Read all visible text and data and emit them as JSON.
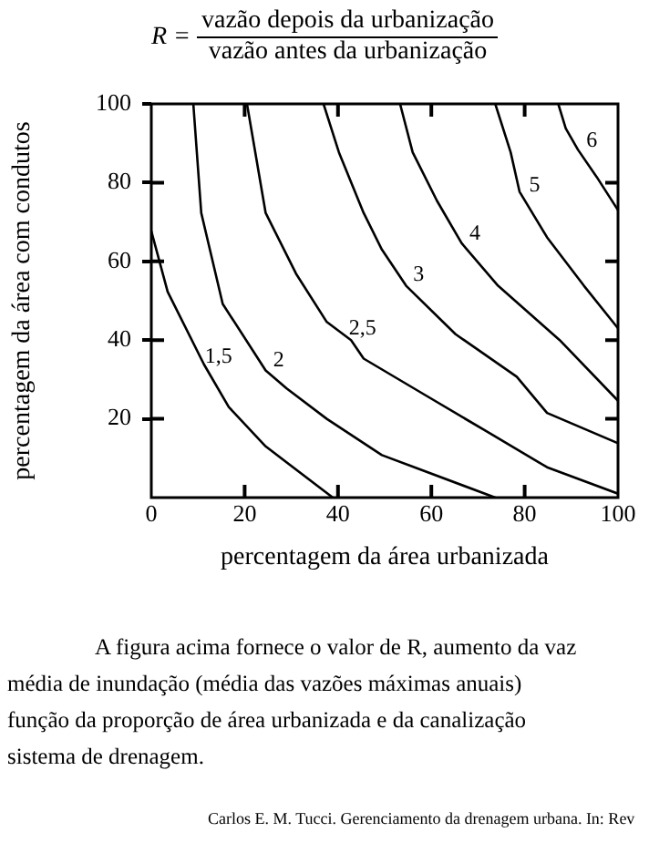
{
  "chart_data": {
    "type": "line",
    "title": "R = vazão depois da urbanização",
    "subtitle": "vazão antes da urbanização",
    "xlabel": "percentagem da área urbanizada",
    "ylabel": "percentagem da área com condutos",
    "xlim": [
      0,
      100
    ],
    "xticks": [
      0,
      20,
      40,
      60,
      80,
      100
    ],
    "ylim": [
      0,
      100
    ],
    "yticks": [
      20,
      40,
      60,
      80,
      100
    ],
    "grid": false,
    "legend": false,
    "marker": "none",
    "line_style": "solid",
    "series": [
      {
        "name": "1,5",
        "color": "#000000",
        "x": [
          0,
          3.5,
          11.3,
          16.6,
          24.5,
          38.9
        ],
        "values": [
          67.7,
          52.3,
          33.8,
          23,
          13,
          0
        ]
      },
      {
        "name": "2",
        "color": "#000000",
        "x": [
          9,
          10.7,
          15.3,
          24.5,
          29,
          37.6,
          49.4,
          73.7
        ],
        "values": [
          100,
          72.3,
          49.2,
          32.3,
          27.7,
          20,
          10.8,
          0
        ]
      },
      {
        "name": "2,5",
        "color": "#000000",
        "x": [
          20.5,
          24.5,
          31,
          37.6,
          42.8,
          45.5,
          58.6,
          71.7,
          84.8,
          100
        ],
        "values": [
          100,
          72.3,
          56.9,
          44.6,
          40,
          35.3,
          26.1,
          16.9,
          7.7,
          1
        ]
      },
      {
        "name": "3",
        "color": "#000000",
        "x": [
          36.9,
          40.2,
          45.5,
          49.4,
          54.6,
          65.2,
          78.3,
          84.8,
          100
        ],
        "values": [
          100,
          87.7,
          72.3,
          63,
          53.8,
          41.5,
          30.7,
          21.5,
          13.8
        ]
      },
      {
        "name": "4",
        "color": "#000000",
        "x": [
          53.3,
          56,
          61.2,
          66.5,
          74.3,
          87.5,
          100
        ],
        "values": [
          100,
          87.7,
          75.4,
          64.6,
          53.8,
          40,
          24.6
        ]
      },
      {
        "name": "5",
        "color": "#000000",
        "x": [
          73.7,
          77,
          78.9,
          84.8,
          92.7,
          100
        ],
        "values": [
          100,
          87.7,
          77.7,
          66.1,
          53.8,
          43
        ]
      },
      {
        "name": "6",
        "color": "#000000",
        "x": [
          87.2,
          88.8,
          91.4,
          95.4,
          100
        ],
        "values": [
          100,
          93.8,
          88.4,
          81.5,
          73
        ]
      }
    ],
    "annotations": [
      "A figura acima fornece o valor de R, aumento da vaz",
      "média de inundação (média das vazões máximas anuais)",
      "função da proporção de área urbanizada e da canalização",
      "sistema de drenagem.",
      "Carlos E. M. Tucci. Gerenciamento da drenagem urbana. In: Rev"
    ]
  }
}
